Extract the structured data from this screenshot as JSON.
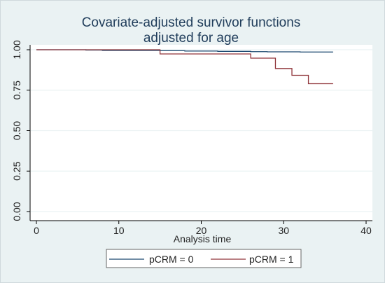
{
  "chart_data": {
    "type": "line",
    "title": [
      "Covariate-adjusted survivor functions",
      "adjusted for age"
    ],
    "xlabel": "Analysis time",
    "ylabel": "",
    "xlim": [
      0,
      40
    ],
    "ylim": [
      0,
      1
    ],
    "x_ticks": [
      0,
      10,
      20,
      30,
      40
    ],
    "x_tick_labels": [
      "0",
      "10",
      "20",
      "30",
      "40"
    ],
    "y_ticks": [
      0,
      0.25,
      0.5,
      0.75,
      1
    ],
    "y_tick_labels": [
      "0.00",
      "0.25",
      "0.50",
      "0.75",
      "1.00"
    ],
    "grid": "horizontal",
    "step": true,
    "legend_position": "bottom",
    "series": [
      {
        "name": "pCRM = 0",
        "color": "#1a476f",
        "x": [
          0,
          6,
          8,
          15,
          18,
          22,
          26,
          28,
          32,
          36
        ],
        "y": [
          1.0,
          0.998,
          0.996,
          0.994,
          0.992,
          0.99,
          0.988,
          0.987,
          0.986,
          0.986
        ]
      },
      {
        "name": "pCRM = 1",
        "color": "#90353b",
        "x": [
          0,
          15,
          26,
          29,
          31,
          33,
          36
        ],
        "y": [
          1.0,
          0.974,
          0.948,
          0.884,
          0.842,
          0.79,
          0.79
        ]
      }
    ]
  }
}
